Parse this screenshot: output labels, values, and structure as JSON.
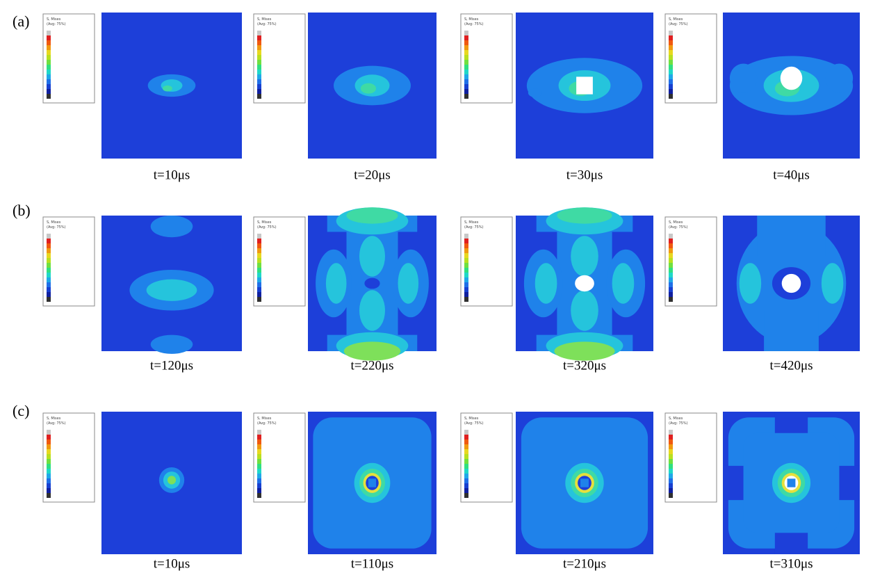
{
  "legend": {
    "title": "S, Mises",
    "subtitle": "(Avg: 75%)"
  },
  "rows": [
    {
      "label": "(a)",
      "panels": [
        {
          "caption": "t=10μs"
        },
        {
          "caption": "t=20μs"
        },
        {
          "caption": "t=30μs"
        },
        {
          "caption": "t=40μs"
        }
      ]
    },
    {
      "label": "(b)",
      "panels": [
        {
          "caption": "t=120μs"
        },
        {
          "caption": "t=220μs"
        },
        {
          "caption": "t=320μs"
        },
        {
          "caption": "t=420μs"
        }
      ]
    },
    {
      "label": "(c)",
      "panels": [
        {
          "caption": "t=10μs"
        },
        {
          "caption": "t=110μs"
        },
        {
          "caption": "t=210μs"
        },
        {
          "caption": "t=310μs"
        }
      ]
    }
  ]
}
